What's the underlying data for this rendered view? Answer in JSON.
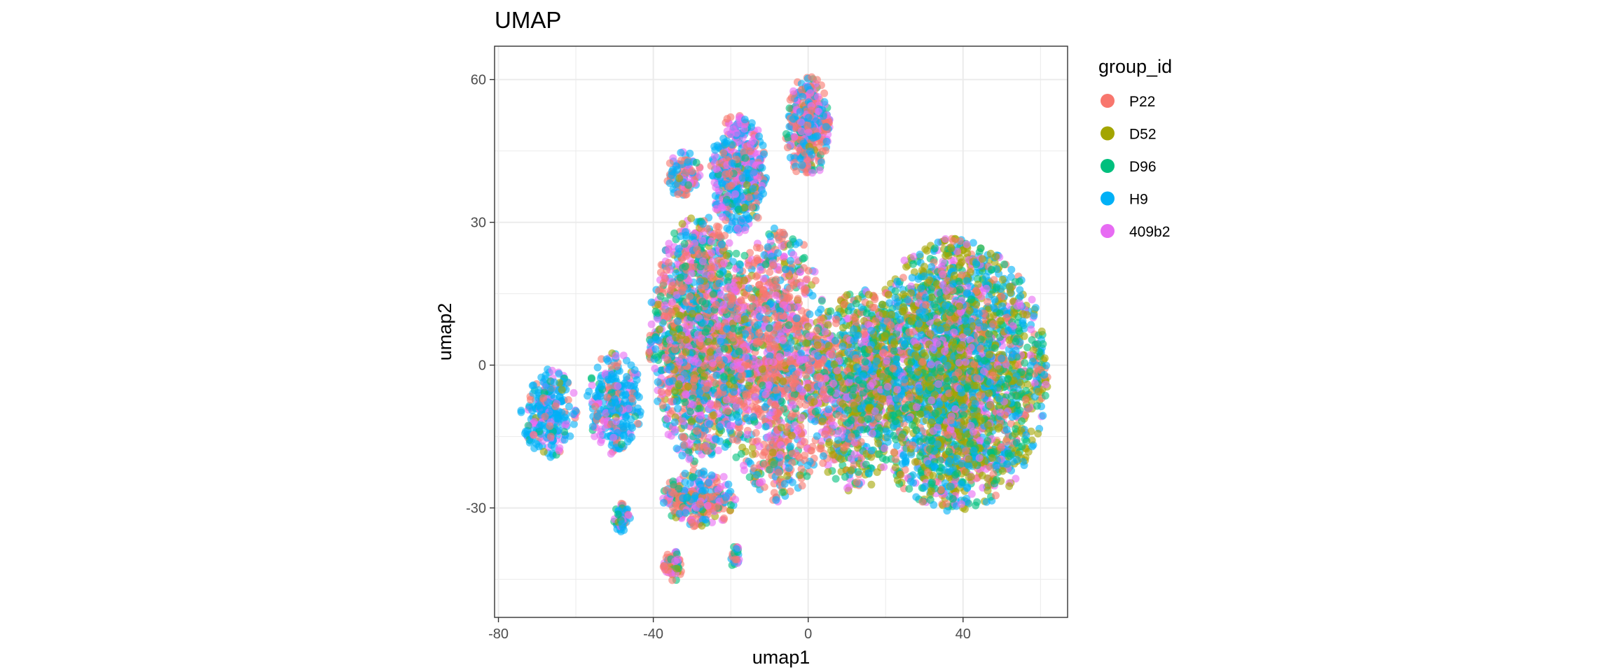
{
  "chart_data": {
    "type": "scatter",
    "title": "UMAP",
    "xlabel": "umap1",
    "ylabel": "umap2",
    "xlim": [
      -81,
      67
    ],
    "ylim": [
      -53,
      67
    ],
    "x_ticks": [
      -80,
      -40,
      0,
      40
    ],
    "y_ticks": [
      -30,
      0,
      30,
      60
    ],
    "grid": true,
    "legend_title": "group_id",
    "legend_position": "right",
    "series": [
      {
        "name": "P22",
        "color": "#F8766D"
      },
      {
        "name": "D52",
        "color": "#A3A500"
      },
      {
        "name": "D96",
        "color": "#00BF7D"
      },
      {
        "name": "H9",
        "color": "#00B0F6"
      },
      {
        "name": "409b2",
        "color": "#E76BF3"
      }
    ],
    "clusters": [
      {
        "cx": -67,
        "cy": -10,
        "rx": 6,
        "ry": 8,
        "n": 260,
        "w": [
          0.08,
          0.02,
          0.08,
          0.62,
          0.2
        ]
      },
      {
        "cx": -50,
        "cy": -8,
        "rx": 6,
        "ry": 9,
        "n": 280,
        "w": [
          0.12,
          0.02,
          0.08,
          0.6,
          0.18
        ]
      },
      {
        "cx": -28,
        "cy": 5,
        "rx": 11,
        "ry": 22,
        "n": 1500,
        "w": [
          0.28,
          0.12,
          0.16,
          0.22,
          0.22
        ]
      },
      {
        "cx": -8,
        "cy": 0,
        "rx": 12,
        "ry": 24,
        "n": 1300,
        "w": [
          0.42,
          0.08,
          0.1,
          0.2,
          0.2
        ]
      },
      {
        "cx": 38,
        "cy": -2,
        "rx": 20,
        "ry": 24,
        "n": 3000,
        "w": [
          0.12,
          0.3,
          0.2,
          0.24,
          0.14
        ]
      },
      {
        "cx": 12,
        "cy": -5,
        "rx": 10,
        "ry": 18,
        "n": 900,
        "w": [
          0.2,
          0.22,
          0.18,
          0.22,
          0.18
        ]
      },
      {
        "cx": -18,
        "cy": 40,
        "rx": 6,
        "ry": 11,
        "n": 500,
        "w": [
          0.15,
          0.03,
          0.07,
          0.5,
          0.25
        ]
      },
      {
        "cx": 0,
        "cy": 50,
        "rx": 5,
        "ry": 9,
        "n": 400,
        "w": [
          0.45,
          0.02,
          0.05,
          0.28,
          0.2
        ]
      },
      {
        "cx": -32,
        "cy": 40,
        "rx": 4,
        "ry": 4,
        "n": 100,
        "w": [
          0.3,
          0.02,
          0.05,
          0.45,
          0.18
        ]
      },
      {
        "cx": -28,
        "cy": -28,
        "rx": 8,
        "ry": 5,
        "n": 300,
        "w": [
          0.4,
          0.08,
          0.1,
          0.22,
          0.2
        ]
      },
      {
        "cx": -48,
        "cy": -32,
        "rx": 2,
        "ry": 3,
        "n": 50,
        "w": [
          0.2,
          0.02,
          0.1,
          0.5,
          0.18
        ]
      },
      {
        "cx": -35,
        "cy": -42,
        "rx": 2,
        "ry": 3,
        "n": 60,
        "w": [
          0.5,
          0.1,
          0.1,
          0.15,
          0.15
        ]
      },
      {
        "cx": -19,
        "cy": -40,
        "rx": 1.2,
        "ry": 2,
        "n": 25,
        "w": [
          0.3,
          0.05,
          0.1,
          0.25,
          0.3
        ]
      }
    ]
  }
}
